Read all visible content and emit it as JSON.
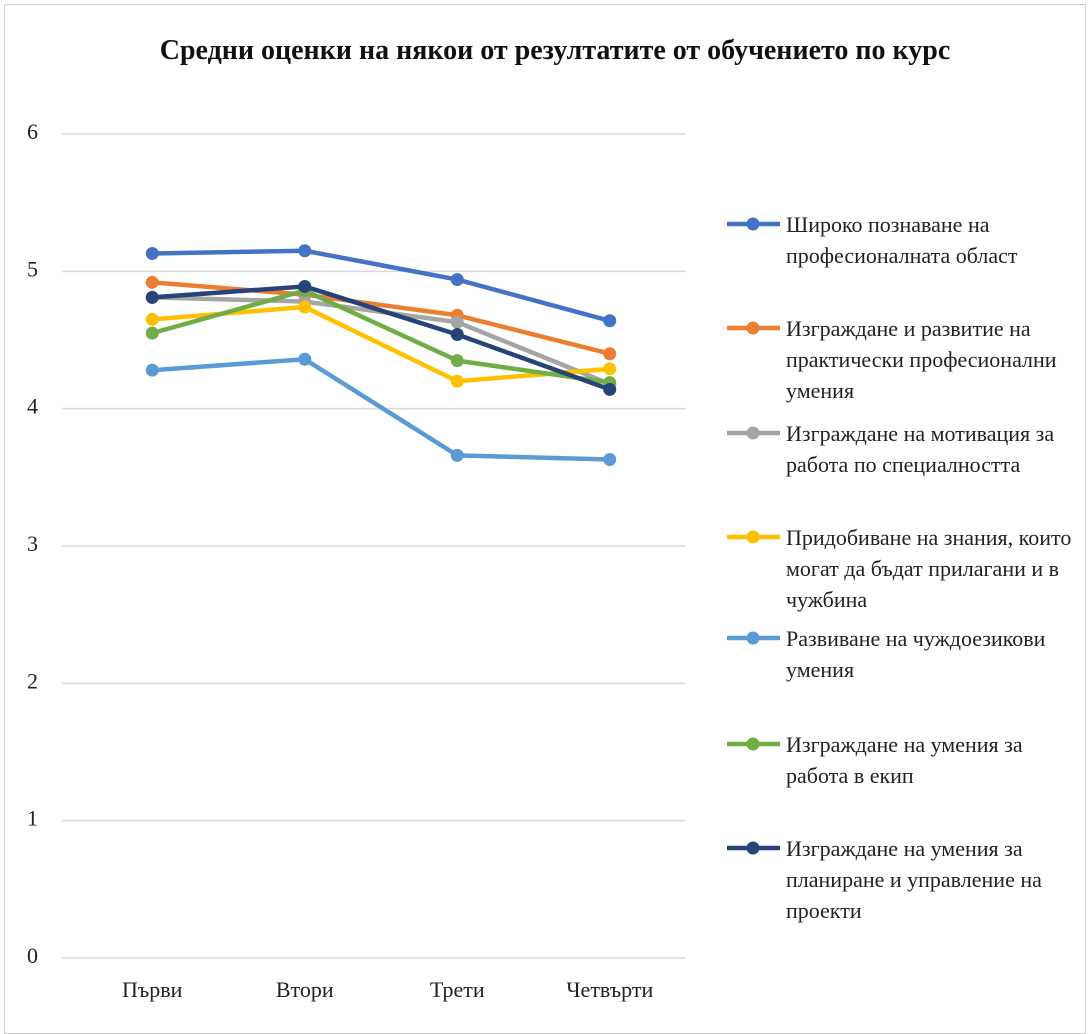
{
  "chart_data": {
    "type": "line",
    "title": "Средни оценки на някои от резултатите от обучението по курс",
    "categories": [
      "Първи",
      "Втори",
      "Трети",
      "Четвърти"
    ],
    "ylim": [
      0,
      6
    ],
    "yticks": [
      0,
      1,
      2,
      3,
      4,
      5,
      6
    ],
    "grid": true,
    "legend": "right",
    "series": [
      {
        "name": "Широко познаване на професионалната област",
        "color": "#4472c4",
        "values": [
          5.13,
          5.15,
          4.94,
          4.64
        ]
      },
      {
        "name": "Изграждане и развитие на  практически професионални умения",
        "color": "#ed7d31",
        "values": [
          4.92,
          4.83,
          4.68,
          4.4
        ]
      },
      {
        "name": "Изграждане на мотивация за работа по специалността",
        "color": "#a5a5a5",
        "values": [
          4.81,
          4.78,
          4.63,
          4.18
        ]
      },
      {
        "name": "Придобиване на знания, които могат да бъдат прилагани и в чужбина",
        "color": "#ffc000",
        "values": [
          4.65,
          4.74,
          4.2,
          4.29
        ]
      },
      {
        "name": "Развиване на чуждоезикови умения",
        "color": "#5b9bd5",
        "values": [
          4.28,
          4.36,
          3.66,
          3.63
        ]
      },
      {
        "name": "Изграждане на умения за работа в екип",
        "color": "#70ad47",
        "values": [
          4.55,
          4.86,
          4.35,
          4.19
        ]
      },
      {
        "name": "Изграждане на умения за планиране и управление на проекти",
        "color": "#264478",
        "values": [
          4.81,
          4.89,
          4.54,
          4.14
        ]
      }
    ]
  }
}
